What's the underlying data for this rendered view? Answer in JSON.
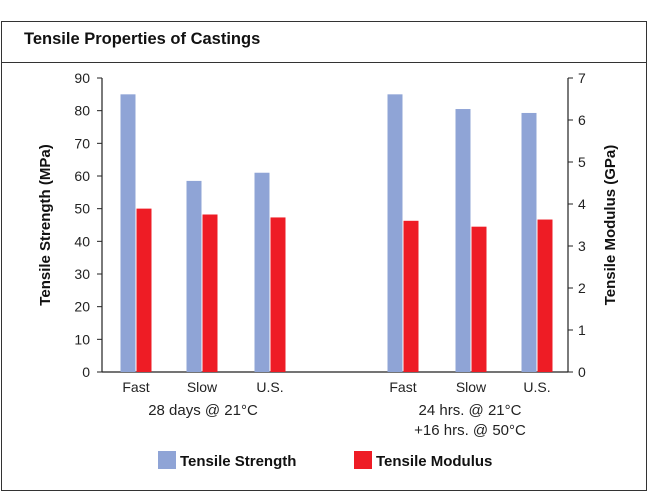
{
  "chart_data": {
    "type": "bar",
    "title": "Tensile Properties of Castings",
    "ylabel_left": "Tensile Strength (MPa)",
    "ylabel_right": "Tensile Modulus (GPa)",
    "ylim_left": [
      0,
      90
    ],
    "ylim_right": [
      0,
      7
    ],
    "yticks_left": [
      "0",
      "10",
      "20",
      "30",
      "40",
      "50",
      "60",
      "70",
      "80",
      "90"
    ],
    "yticks_right": [
      "0",
      "1",
      "2",
      "3",
      "4",
      "5",
      "6",
      "7"
    ],
    "categories": [
      "Fast",
      "Slow",
      "U.S.",
      "Fast",
      "Slow",
      "U.S."
    ],
    "groups": [
      {
        "lines": [
          "28 days @ 21°C"
        ]
      },
      {
        "lines": [
          "24 hrs. @ 21°C",
          "+16 hrs. @ 50°C"
        ]
      }
    ],
    "series": [
      {
        "name": "Tensile Strength",
        "axis": "left",
        "color": "#8fa4d6",
        "values": [
          85,
          58.5,
          61,
          85,
          80.5,
          79.3
        ]
      },
      {
        "name": "Tensile Modulus",
        "axis": "right",
        "color": "#ee1c25",
        "values": [
          3.89,
          3.75,
          3.68,
          3.6,
          3.46,
          3.63
        ]
      }
    ],
    "grid": false,
    "legend": "bottom"
  }
}
